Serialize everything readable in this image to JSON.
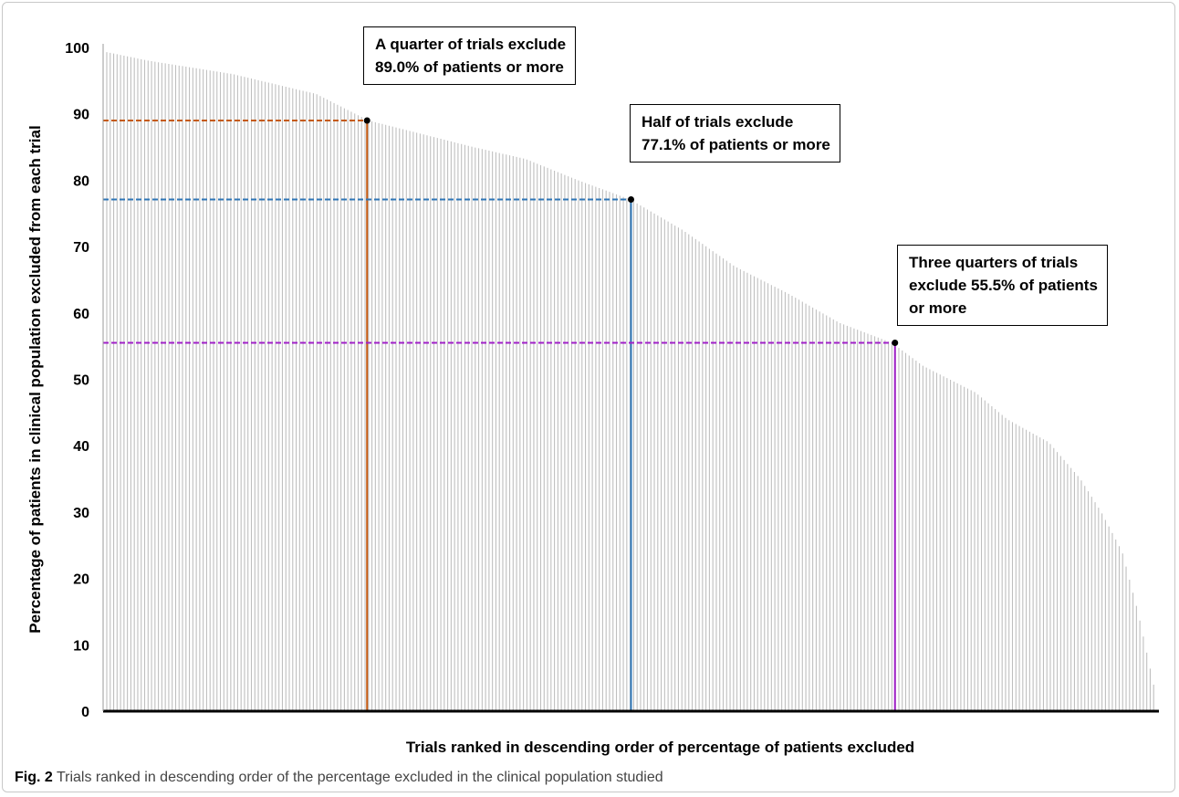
{
  "chart_data": {
    "type": "bar",
    "ylabel": "Percentage of patients in clinical population excluded from each trial",
    "xlabel": "Trials ranked in descending order of percentage of patients excluded",
    "ylim": [
      0,
      100
    ],
    "yticks": [
      "0",
      "10",
      "20",
      "30",
      "40",
      "50",
      "60",
      "70",
      "80",
      "90",
      "100"
    ],
    "grid": false,
    "bar_color": "#bfbfbf",
    "n_trials": 305,
    "profile": [
      [
        0,
        99.3
      ],
      [
        0.04,
        98.0
      ],
      [
        0.08,
        97.0
      ],
      [
        0.12,
        96.0
      ],
      [
        0.16,
        94.5
      ],
      [
        0.2,
        93.0
      ],
      [
        0.25,
        89.0
      ],
      [
        0.3,
        87.0
      ],
      [
        0.35,
        85.0
      ],
      [
        0.4,
        83.2
      ],
      [
        0.45,
        80.0
      ],
      [
        0.5,
        77.1
      ],
      [
        0.55,
        72.5
      ],
      [
        0.6,
        67.0
      ],
      [
        0.65,
        63.0
      ],
      [
        0.7,
        58.5
      ],
      [
        0.75,
        55.5
      ],
      [
        0.78,
        52.0
      ],
      [
        0.83,
        48.0
      ],
      [
        0.86,
        44.0
      ],
      [
        0.9,
        40.5
      ],
      [
        0.93,
        35.0
      ],
      [
        0.95,
        30.0
      ],
      [
        0.97,
        24.0
      ],
      [
        0.985,
        15.0
      ],
      [
        1.0,
        4.0
      ]
    ],
    "reference_markers": [
      {
        "fraction": 0.25,
        "value": 89.0,
        "color": "#c55a11"
      },
      {
        "fraction": 0.5,
        "value": 77.1,
        "color": "#2e75b6"
      },
      {
        "fraction": 0.75,
        "value": 55.5,
        "color": "#a020c8"
      }
    ],
    "annotations": [
      {
        "text": "A quarter of trials exclude\n89.0% of patients or more"
      },
      {
        "text": "Half of trials exclude\n77.1% of patients or more"
      },
      {
        "text": "Three quarters of trials\nexclude 55.5% of patients\nor more"
      }
    ]
  },
  "caption": {
    "label": "Fig. 2",
    "text": " Trials ranked in descending order of the percentage excluded in the clinical population studied"
  }
}
